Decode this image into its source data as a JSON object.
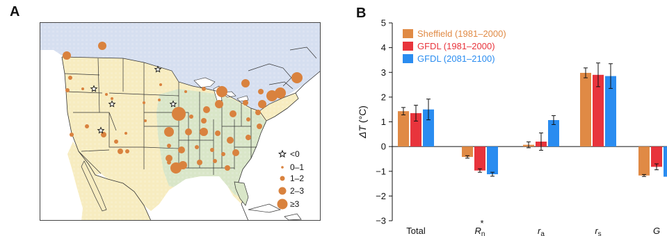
{
  "panel_a": {
    "letter": "A",
    "legend": [
      {
        "label": "<0",
        "symbol": "star-icon"
      },
      {
        "label": "0–1",
        "symbol": "dot-icon"
      },
      {
        "label": "1–2",
        "symbol": "dot-icon"
      },
      {
        "label": "2–3",
        "symbol": "dot-icon"
      },
      {
        "label": "≥3",
        "symbol": "dot-icon"
      }
    ],
    "colors": {
      "ocean": "#ffffff",
      "canada_land": "#d6dff0",
      "cropland": "#d9e6c8",
      "dry_land": "#f7ecc0",
      "marker": "#d9823e",
      "borders": "#333333"
    }
  },
  "chart_data": {
    "type": "bar",
    "letter": "B",
    "categories": [
      "Total",
      "R*n",
      "ra",
      "rs",
      "G"
    ],
    "category_labels": [
      {
        "main": "Total",
        "sub": "",
        "sup": ""
      },
      {
        "main": "R",
        "sub": "n",
        "sup": "*"
      },
      {
        "main": "r",
        "sub": "a",
        "sup": ""
      },
      {
        "main": "r",
        "sub": "s",
        "sup": ""
      },
      {
        "main": "G",
        "sub": "",
        "sup": ""
      }
    ],
    "series": [
      {
        "name": "Sheffield (1981–2000)",
        "color": "#e08a45",
        "values": [
          1.43,
          -0.42,
          0.07,
          2.98,
          -1.17
        ],
        "errors": [
          0.15,
          0.05,
          0.12,
          0.2,
          0.04
        ]
      },
      {
        "name": "GFDL (1981–2000)",
        "color": "#e8343c",
        "values": [
          1.35,
          -0.97,
          0.2,
          2.9,
          -0.82
        ],
        "errors": [
          0.32,
          0.07,
          0.35,
          0.48,
          0.12
        ]
      },
      {
        "name": "GFDL (2081–2100)",
        "color": "#2a8cf0",
        "values": [
          1.5,
          -1.12,
          1.07,
          2.85,
          -1.22
        ],
        "errors": [
          0.42,
          0.08,
          0.18,
          0.5,
          0.1
        ]
      }
    ],
    "ylabel_symbol": "ΔT",
    "ylabel_unit": "(°C)",
    "ylim": [
      -3,
      5
    ],
    "yticks": [
      -3,
      -2,
      -1,
      0,
      1,
      2,
      3,
      4,
      5
    ],
    "legend_position": "top-left",
    "grid": false
  }
}
